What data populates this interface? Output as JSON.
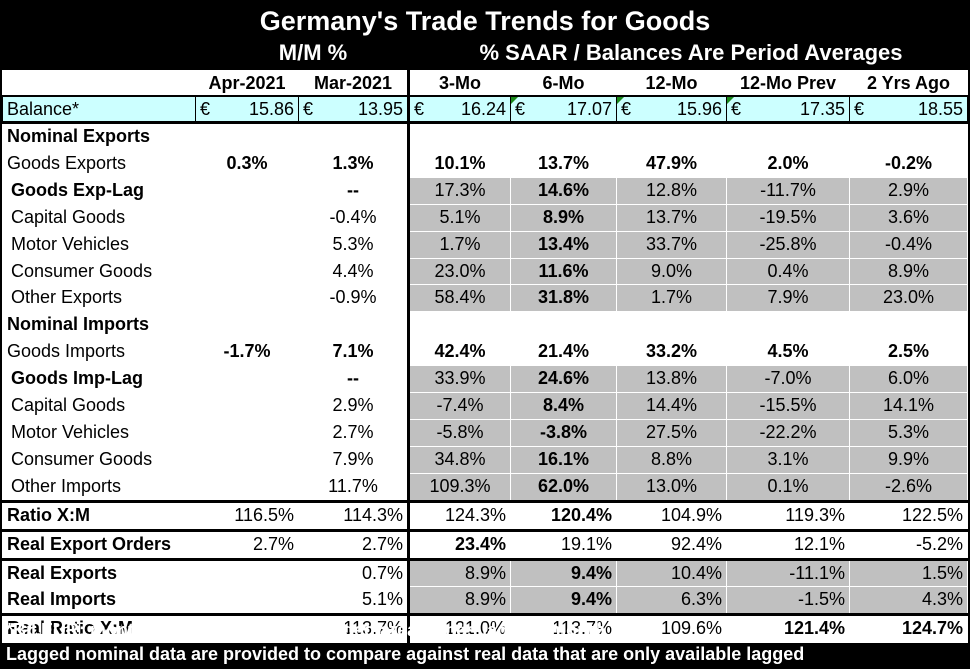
{
  "title": "Germany's Trade Trends for Goods",
  "sub_mm": "M/M %",
  "sub_saar": "% SAAR / Balances Are Period Averages",
  "columns": [
    "Apr-2021",
    "Mar-2021",
    "3-Mo",
    "6-Mo",
    "12-Mo",
    "12-Mo Prev",
    "2 Yrs Ago"
  ],
  "balance": {
    "label": "Balance*",
    "currency": "€",
    "values": [
      "15.86",
      "13.95",
      "16.24",
      "17.07",
      "15.96",
      "17.35",
      "18.55"
    ]
  },
  "rows": [
    {
      "label": "Nominal Exports",
      "cells": [
        "",
        "",
        "",
        "",
        "",
        "",
        ""
      ]
    },
    {
      "label": "Goods Exports",
      "cells": [
        "0.3%",
        "1.3%",
        "10.1%",
        "13.7%",
        "47.9%",
        "2.0%",
        "-0.2%"
      ]
    },
    {
      "label": "Goods Exp-Lag",
      "cells": [
        "",
        "--",
        "17.3%",
        "14.6%",
        "12.8%",
        "-11.7%",
        "2.9%"
      ]
    },
    {
      "label": "Capital Goods",
      "cells": [
        "",
        "-0.4%",
        "5.1%",
        "8.9%",
        "13.7%",
        "-19.5%",
        "3.6%"
      ]
    },
    {
      "label": "Motor Vehicles",
      "cells": [
        "",
        "5.3%",
        "1.7%",
        "13.4%",
        "33.7%",
        "-25.8%",
        "-0.4%"
      ]
    },
    {
      "label": "Consumer Goods",
      "cells": [
        "",
        "4.4%",
        "23.0%",
        "11.6%",
        "9.0%",
        "0.4%",
        "8.9%"
      ]
    },
    {
      "label": "Other Exports",
      "cells": [
        "",
        "-0.9%",
        "58.4%",
        "31.8%",
        "1.7%",
        "7.9%",
        "23.0%"
      ]
    },
    {
      "label": "Nominal Imports",
      "cells": [
        "",
        "",
        "",
        "",
        "",
        "",
        ""
      ]
    },
    {
      "label": "Goods Imports",
      "cells": [
        "-1.7%",
        "7.1%",
        "42.4%",
        "21.4%",
        "33.2%",
        "4.5%",
        "2.5%"
      ]
    },
    {
      "label": "Goods Imp-Lag",
      "cells": [
        "",
        "--",
        "33.9%",
        "24.6%",
        "13.8%",
        "-7.0%",
        "6.0%"
      ]
    },
    {
      "label": "Capital Goods",
      "cells": [
        "",
        "2.9%",
        "-7.4%",
        "8.4%",
        "14.4%",
        "-15.5%",
        "14.1%"
      ]
    },
    {
      "label": "Motor Vehicles",
      "cells": [
        "",
        "2.7%",
        "-5.8%",
        "-3.8%",
        "27.5%",
        "-22.2%",
        "5.3%"
      ]
    },
    {
      "label": "Consumer Goods",
      "cells": [
        "",
        "7.9%",
        "34.8%",
        "16.1%",
        "8.8%",
        "3.1%",
        "9.9%"
      ]
    },
    {
      "label": "Other Imports",
      "cells": [
        "",
        "11.7%",
        "109.3%",
        "62.0%",
        "13.0%",
        "0.1%",
        "-2.6%"
      ]
    },
    {
      "label": "Ratio X:M",
      "cells": [
        "116.5%",
        "114.3%",
        "124.3%",
        "120.4%",
        "104.9%",
        "119.3%",
        "122.5%"
      ]
    },
    {
      "label": "Real Export Orders",
      "cells": [
        "2.7%",
        "2.7%",
        "23.4%",
        "19.1%",
        "92.4%",
        "12.1%",
        "-5.2%"
      ]
    },
    {
      "label": "Real Exports",
      "cells": [
        "",
        "0.7%",
        "8.9%",
        "9.4%",
        "10.4%",
        "-11.1%",
        "1.5%"
      ]
    },
    {
      "label": "Real Imports",
      "cells": [
        "",
        "5.1%",
        "8.9%",
        "9.4%",
        "6.3%",
        "-1.5%",
        "4.3%"
      ]
    },
    {
      "label": "Real Ratio X:M",
      "cells": [
        "",
        "113.7%",
        "121.0%",
        "113.7%",
        "109.6%",
        "121.4%",
        "124.7%"
      ]
    }
  ],
  "footnote_1": "*Bil.EUR; month or period average; shaded area trends lag one month",
  "footnote_2": "Lagged nominal data are provided to compare against real data that are only available lagged",
  "colors": {
    "background": "#000000",
    "shade": "#c0c0c0",
    "balance_fill": "#ccffff",
    "marker": "#1a8a1a"
  }
}
